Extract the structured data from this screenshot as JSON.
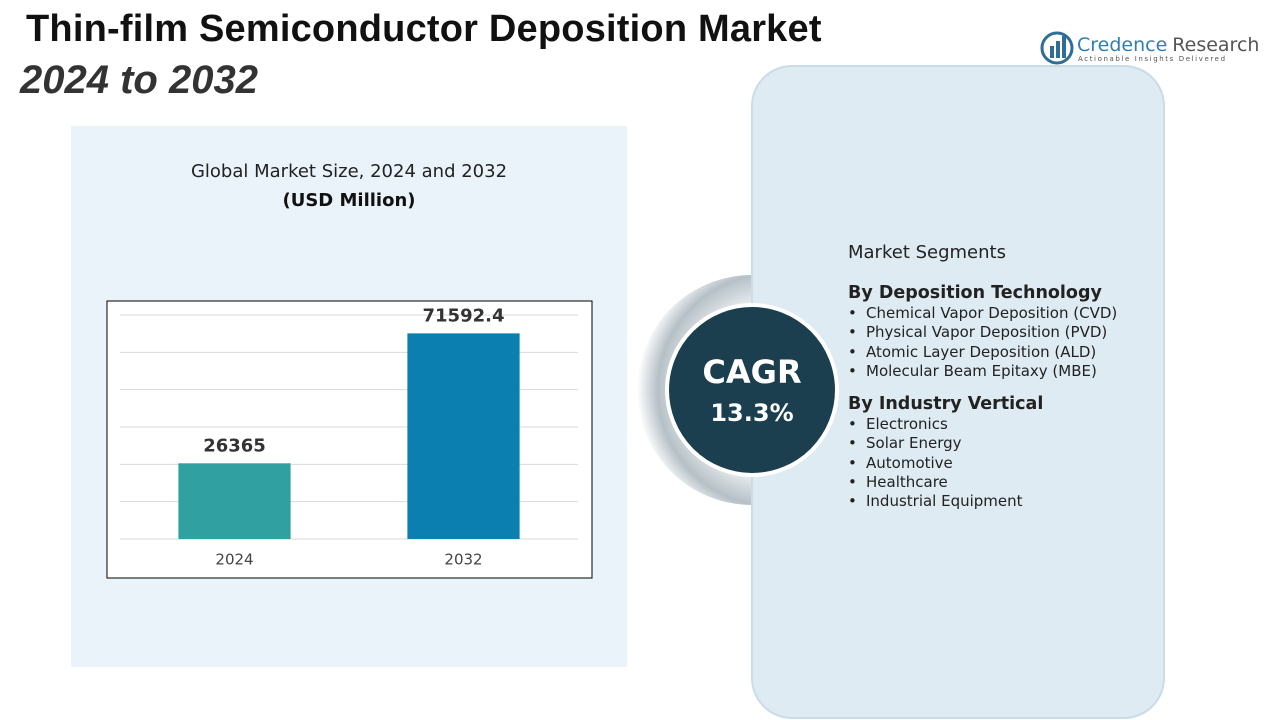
{
  "header": {
    "title": "Thin-film Semiconductor Deposition Market",
    "subtitle": "2024 to 2032"
  },
  "logo": {
    "brand": "Credence",
    "brand_suffix": "Research",
    "tagline": "Actionable Insights Delivered"
  },
  "chart_data": {
    "type": "bar",
    "title": "Global Market Size, 2024 and 2032",
    "subtitle": "(USD Million)",
    "categories": [
      "2024",
      "2032"
    ],
    "values": [
      26365,
      71592.4
    ],
    "colors": [
      "#31a0a0",
      "#0a7fb0"
    ],
    "ylim": [
      0,
      78000
    ],
    "yticks": [
      0,
      13000,
      26000,
      39000,
      52000,
      65000,
      78000
    ],
    "grid": true
  },
  "cagr": {
    "label": "CAGR",
    "value": "13.3%"
  },
  "segments": {
    "heading": "Market Segments",
    "groups": [
      {
        "title": "By Deposition Technology",
        "items": [
          "Chemical Vapor Deposition (CVD)",
          "Physical Vapor Deposition (PVD)",
          "Atomic Layer Deposition (ALD)",
          "Molecular Beam Epitaxy (MBE)"
        ]
      },
      {
        "title": "By Industry Vertical",
        "items": [
          "Electronics",
          "Solar Energy",
          "Automotive",
          "Healthcare",
          "Industrial Equipment"
        ]
      }
    ]
  }
}
